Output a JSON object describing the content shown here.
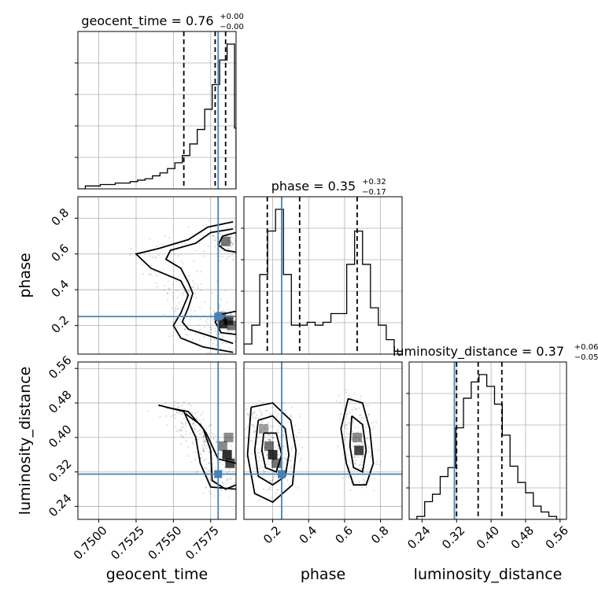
{
  "parameters": [
    "geocent_time",
    "phase",
    "luminosity_distance"
  ],
  "colors": {
    "truth": "#4682b4",
    "lines": "#000000",
    "grid": "#b0b0b0"
  },
  "chart_data": {
    "type": "corner",
    "truths": {
      "geocent_time": 0.758,
      "phase": 0.25,
      "luminosity_distance": 0.315
    },
    "ranges": {
      "geocent_time": [
        0.7486,
        0.7592
      ],
      "phase": [
        0.04,
        0.92
      ],
      "luminosity_distance": [
        0.21,
        0.575
      ]
    },
    "ticks": {
      "geocent_time": {
        "values": [
          0.75,
          0.7525,
          0.755,
          0.7575
        ],
        "labels": [
          "0.7500",
          "0.7525",
          "0.7550",
          "0.7575"
        ]
      },
      "phase": {
        "values": [
          0.2,
          0.4,
          0.6,
          0.8
        ],
        "labels": [
          "0.2",
          "0.4",
          "0.6",
          "0.8"
        ]
      },
      "luminosity_distance": {
        "values": [
          0.24,
          0.32,
          0.4,
          0.48,
          0.56
        ],
        "labels": [
          "0.24",
          "0.32",
          "0.40",
          "0.48",
          "0.56"
        ]
      }
    },
    "marginals": {
      "geocent_time": {
        "title_main": "geocent_time = 0.76",
        "title_sup": "+0.00",
        "title_sub": "−0.00",
        "quantiles": [
          0.7557,
          0.7578,
          0.7585
        ],
        "bin_edges": [
          0.7486,
          0.7491,
          0.7496,
          0.7501,
          0.7506,
          0.7511,
          0.7516,
          0.7521,
          0.7526,
          0.7531,
          0.7536,
          0.7541,
          0.7546,
          0.7551,
          0.7556,
          0.7561,
          0.7566,
          0.7571,
          0.7576,
          0.7581,
          0.7586,
          0.7591,
          0.7592
        ],
        "counts": [
          0,
          0.02,
          0.02,
          0.03,
          0.03,
          0.04,
          0.04,
          0.05,
          0.06,
          0.07,
          0.09,
          0.11,
          0.14,
          0.18,
          0.23,
          0.31,
          0.41,
          0.55,
          0.72,
          0.89,
          1.0,
          0.42
        ]
      },
      "phase": {
        "title_main": "phase = 0.35",
        "title_sup": "+0.32",
        "title_sub": "−0.17",
        "quantiles": [
          0.17,
          0.35,
          0.67
        ],
        "bin_edges": [
          0.04,
          0.084,
          0.128,
          0.172,
          0.216,
          0.26,
          0.304,
          0.348,
          0.392,
          0.436,
          0.48,
          0.524,
          0.568,
          0.612,
          0.656,
          0.7,
          0.744,
          0.788,
          0.832,
          0.876,
          0.92
        ],
        "counts": [
          0.07,
          0.2,
          0.55,
          0.85,
          1.0,
          0.55,
          0.2,
          0.2,
          0.22,
          0.2,
          0.22,
          0.28,
          0.28,
          0.62,
          0.85,
          0.62,
          0.32,
          0.2,
          0.1,
          0.02
        ]
      },
      "luminosity_distance": {
        "title_main": "luminosity_distance = 0.37",
        "title_sup": "+0.06",
        "title_sub": "−0.05",
        "quantiles": [
          0.32,
          0.37,
          0.425
        ],
        "bin_edges": [
          0.21,
          0.228,
          0.246,
          0.264,
          0.282,
          0.3,
          0.318,
          0.336,
          0.354,
          0.372,
          0.39,
          0.408,
          0.426,
          0.444,
          0.462,
          0.48,
          0.498,
          0.516,
          0.534,
          0.552,
          0.57
        ],
        "counts": [
          0.0,
          0.02,
          0.12,
          0.17,
          0.29,
          0.35,
          0.62,
          0.82,
          0.93,
          0.98,
          0.9,
          0.78,
          0.57,
          0.36,
          0.25,
          0.18,
          0.09,
          0.05,
          0.02,
          0.0
        ]
      }
    },
    "pairs": [
      {
        "x": "geocent_time",
        "y": "phase",
        "contours": [
          [
            [
              0.759,
              0.1
            ],
            [
              0.7575,
              0.14
            ],
            [
              0.756,
              0.18
            ],
            [
              0.7556,
              0.22
            ],
            [
              0.756,
              0.3
            ],
            [
              0.7563,
              0.38
            ],
            [
              0.756,
              0.44
            ],
            [
              0.7555,
              0.52
            ],
            [
              0.7545,
              0.57
            ],
            [
              0.7548,
              0.62
            ],
            [
              0.7565,
              0.66
            ],
            [
              0.7575,
              0.72
            ],
            [
              0.759,
              0.74
            ]
          ],
          [
            [
              0.759,
              0.05
            ],
            [
              0.757,
              0.08
            ],
            [
              0.7555,
              0.13
            ],
            [
              0.755,
              0.2
            ],
            [
              0.7555,
              0.27
            ],
            [
              0.756,
              0.37
            ],
            [
              0.7555,
              0.45
            ],
            [
              0.7535,
              0.52
            ],
            [
              0.7525,
              0.6
            ],
            [
              0.754,
              0.63
            ],
            [
              0.756,
              0.68
            ],
            [
              0.7573,
              0.75
            ],
            [
              0.759,
              0.78
            ]
          ],
          [
            [
              0.7592,
              0.28
            ],
            [
              0.7581,
              0.26
            ],
            [
              0.7578,
              0.22
            ],
            [
              0.7582,
              0.16
            ],
            [
              0.7592,
              0.15
            ]
          ],
          [
            [
              0.7592,
              0.72
            ],
            [
              0.7583,
              0.7
            ],
            [
              0.758,
              0.65
            ],
            [
              0.7585,
              0.62
            ],
            [
              0.7592,
              0.61
            ]
          ]
        ],
        "density": [
          [
            0.7583,
            0.21,
            0.9
          ],
          [
            0.7587,
            0.23,
            0.8
          ],
          [
            0.7589,
            0.2,
            0.6
          ],
          [
            0.7585,
            0.67,
            0.6
          ],
          [
            0.7582,
            0.25,
            0.5
          ]
        ]
      },
      {
        "x": "geocent_time",
        "y": "luminosity_distance",
        "contours": [
          [
            [
              0.7558,
              0.455
            ],
            [
              0.7568,
              0.43
            ],
            [
              0.7572,
              0.41
            ],
            [
              0.7576,
              0.38
            ],
            [
              0.758,
              0.35
            ],
            [
              0.7592,
              0.34
            ]
          ],
          [
            [
              0.7545,
              0.47
            ],
            [
              0.756,
              0.46
            ],
            [
              0.757,
              0.42
            ],
            [
              0.7575,
              0.37
            ],
            [
              0.7576,
              0.3
            ],
            [
              0.7585,
              0.28
            ],
            [
              0.7592,
              0.29
            ]
          ],
          [
            [
              0.754,
              0.475
            ],
            [
              0.7557,
              0.46
            ],
            [
              0.7561,
              0.43
            ],
            [
              0.7565,
              0.4
            ],
            [
              0.7568,
              0.34
            ],
            [
              0.7575,
              0.285
            ],
            [
              0.7592,
              0.28
            ]
          ]
        ],
        "density": [
          [
            0.7586,
            0.36,
            0.9
          ],
          [
            0.7588,
            0.34,
            0.8
          ],
          [
            0.7583,
            0.38,
            0.5
          ],
          [
            0.7587,
            0.4,
            0.5
          ]
        ]
      },
      {
        "x": "phase",
        "y": "luminosity_distance",
        "contours": [
          [
            [
              0.12,
              0.44
            ],
            [
              0.2,
              0.45
            ],
            [
              0.27,
              0.42
            ],
            [
              0.29,
              0.36
            ],
            [
              0.27,
              0.31
            ],
            [
              0.2,
              0.29
            ],
            [
              0.12,
              0.31
            ],
            [
              0.1,
              0.37
            ],
            [
              0.12,
              0.44
            ]
          ],
          [
            [
              0.08,
              0.47
            ],
            [
              0.2,
              0.48
            ],
            [
              0.3,
              0.44
            ],
            [
              0.33,
              0.37
            ],
            [
              0.31,
              0.29
            ],
            [
              0.2,
              0.25
            ],
            [
              0.1,
              0.27
            ],
            [
              0.06,
              0.36
            ],
            [
              0.08,
              0.47
            ]
          ],
          [
            [
              0.62,
              0.49
            ],
            [
              0.7,
              0.48
            ],
            [
              0.74,
              0.42
            ],
            [
              0.76,
              0.34
            ],
            [
              0.72,
              0.29
            ],
            [
              0.65,
              0.29
            ],
            [
              0.61,
              0.34
            ],
            [
              0.58,
              0.42
            ],
            [
              0.62,
              0.49
            ]
          ],
          [
            [
              0.64,
              0.45
            ],
            [
              0.7,
              0.43
            ],
            [
              0.72,
              0.37
            ],
            [
              0.7,
              0.32
            ],
            [
              0.65,
              0.33
            ],
            [
              0.63,
              0.38
            ],
            [
              0.64,
              0.45
            ]
          ],
          [
            [
              0.15,
              0.41
            ],
            [
              0.22,
              0.41
            ],
            [
              0.25,
              0.36
            ],
            [
              0.22,
              0.32
            ],
            [
              0.16,
              0.33
            ],
            [
              0.14,
              0.37
            ],
            [
              0.15,
              0.41
            ]
          ]
        ],
        "density": [
          [
            0.2,
            0.36,
            0.9
          ],
          [
            0.18,
            0.38,
            0.6
          ],
          [
            0.22,
            0.34,
            0.6
          ],
          [
            0.68,
            0.37,
            0.8
          ],
          [
            0.67,
            0.4,
            0.5
          ],
          [
            0.15,
            0.42,
            0.4
          ]
        ]
      }
    ]
  }
}
